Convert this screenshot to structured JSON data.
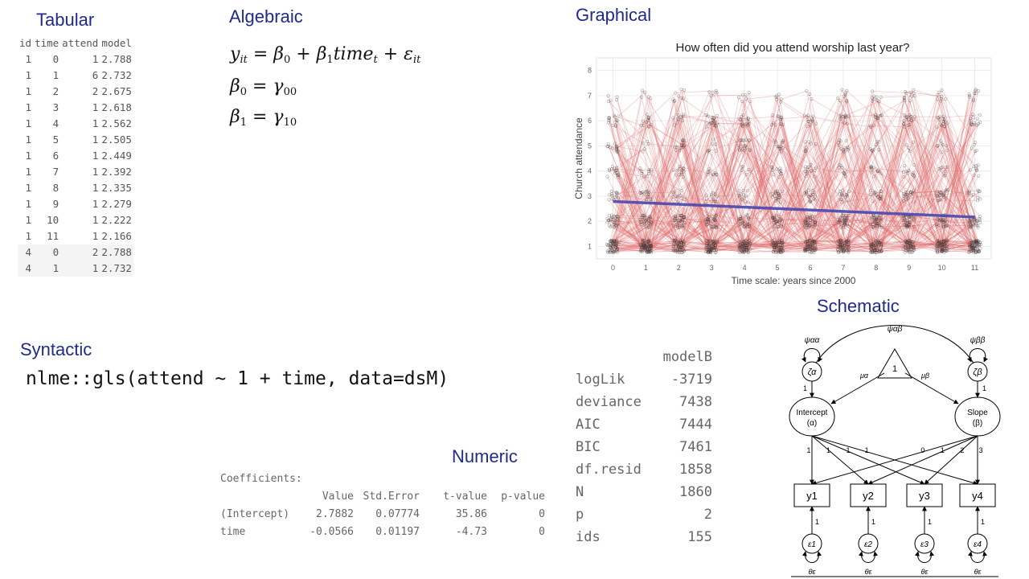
{
  "titles": {
    "tabular": "Tabular",
    "algebraic": "Algebraic",
    "graphical": "Graphical",
    "schematic": "Schematic",
    "syntactic": "Syntactic",
    "numeric": "Numeric"
  },
  "tabular": {
    "headers": [
      "id",
      "time",
      "attend",
      "model"
    ],
    "rows": [
      [
        "1",
        "0",
        "1",
        "2.788"
      ],
      [
        "1",
        "1",
        "6",
        "2.732"
      ],
      [
        "1",
        "2",
        "2",
        "2.675"
      ],
      [
        "1",
        "3",
        "1",
        "2.618"
      ],
      [
        "1",
        "4",
        "1",
        "2.562"
      ],
      [
        "1",
        "5",
        "1",
        "2.505"
      ],
      [
        "1",
        "6",
        "1",
        "2.449"
      ],
      [
        "1",
        "7",
        "1",
        "2.392"
      ],
      [
        "1",
        "8",
        "1",
        "2.335"
      ],
      [
        "1",
        "9",
        "1",
        "2.279"
      ],
      [
        "1",
        "10",
        "1",
        "2.222"
      ],
      [
        "1",
        "11",
        "1",
        "2.166"
      ],
      [
        "4",
        "0",
        "2",
        "2.788"
      ],
      [
        "4",
        "1",
        "1",
        "2.732"
      ]
    ]
  },
  "algebraic": {
    "eq1": "y_it = β0 + β1 time_t + ε_it",
    "eq2": "β0 = γ00",
    "eq3": "β1 = γ10"
  },
  "syntactic": {
    "code": "nlme::gls(attend ~ 1 + time, data=dsM)"
  },
  "numeric": {
    "coefficients_label": "Coefficients:",
    "columns": [
      "Value",
      "Std.Error",
      "t-value",
      "p-value"
    ],
    "rows": [
      {
        "term": "(Intercept)",
        "value": "2.7882",
        "se": "0.07774",
        "t": "35.86",
        "p": "0"
      },
      {
        "term": "time",
        "value": "-0.0566",
        "se": "0.01197",
        "t": "-4.73",
        "p": "0"
      }
    ],
    "fit_header": "modelB",
    "fit": [
      {
        "k": "logLik",
        "v": "-3719"
      },
      {
        "k": "deviance",
        "v": "7438"
      },
      {
        "k": "AIC",
        "v": "7444"
      },
      {
        "k": "BIC",
        "v": "7461"
      },
      {
        "k": "df.resid",
        "v": "1858"
      },
      {
        "k": "N",
        "v": "1860"
      },
      {
        "k": "p",
        "v": "2"
      },
      {
        "k": "ids",
        "v": "155"
      }
    ]
  },
  "chart_data": {
    "type": "line",
    "title": "How often did you attend worship last year?",
    "xlabel": "Time scale: years since 2000",
    "ylabel": "Church attendance",
    "xlim": [
      -0.5,
      11.5
    ],
    "ylim": [
      0.5,
      8.5
    ],
    "x_ticks": [
      0,
      1,
      2,
      3,
      4,
      5,
      6,
      7,
      8,
      9,
      10,
      11
    ],
    "y_ticks": [
      1,
      2,
      3,
      4,
      5,
      6,
      7,
      8
    ],
    "grid": true,
    "individual_color": "#e06666",
    "trend_color": "#4747b0",
    "series": [
      {
        "x": [
          0,
          11
        ],
        "y": [
          2.788,
          2.166
        ]
      }
    ]
  },
  "schematic": {
    "psi_top": "ψαβ",
    "psi_left": "ψαα",
    "psi_right": "ψββ",
    "const": "1",
    "mu_a": "μα",
    "mu_b": "μβ",
    "zeta_a": "ζα",
    "zeta_b": "ζβ",
    "intercept": "Intercept",
    "intercept_sym": "(α)",
    "slope": "Slope",
    "slope_sym": "(β)",
    "ys": [
      "y1",
      "y2",
      "y3",
      "y4"
    ],
    "eps": [
      "ε1",
      "ε2",
      "ε3",
      "ε4"
    ],
    "theta": "θε",
    "int_loadings": [
      "1",
      "1",
      "1",
      "1"
    ],
    "slope_loadings": [
      "0",
      "1",
      "2",
      "3"
    ],
    "one": "1"
  }
}
